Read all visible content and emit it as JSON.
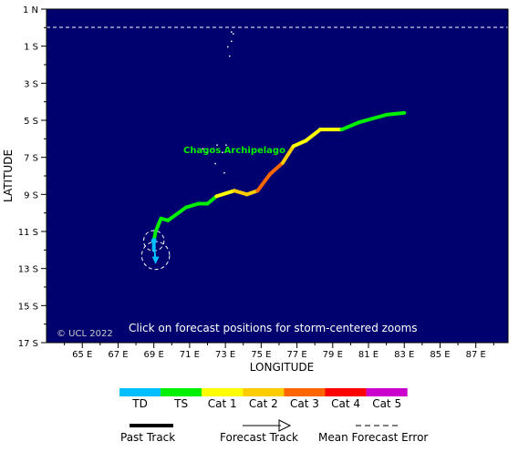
{
  "map": {
    "axes": {
      "y_title": "LATITUDE",
      "x_title": "LONGITUDE",
      "y_ticks": [
        "1 N",
        "1 S",
        "3 S",
        "5 S",
        "7 S",
        "9 S",
        "11 S",
        "13 S",
        "15 S",
        "17 S"
      ],
      "x_ticks": [
        "65 E",
        "67 E",
        "69 E",
        "71 E",
        "73 E",
        "75 E",
        "77 E",
        "79 E",
        "81 E",
        "83 E",
        "85 E",
        "87 E"
      ]
    },
    "region_label": "Chagos Archipelago",
    "copyright": "© UCL 2022",
    "instructions": "Click on forecast positions for storm-centered zooms",
    "colors": {
      "ocean": "#00006e",
      "TD": "#00bfff",
      "TS": "#00ee00",
      "Cat 1": "#ffff00",
      "Cat 2": "#ffcc00",
      "Cat 3": "#ff6600",
      "Cat 4": "#ff0000",
      "Cat 5": "#cc00cc"
    },
    "past_track": [
      {
        "lon": 69.0,
        "lat": -12.0,
        "cat": "TD"
      },
      {
        "lon": 69.0,
        "lat": -11.5,
        "cat": "TD"
      },
      {
        "lon": 69.1,
        "lat": -11.0,
        "cat": "TS"
      },
      {
        "lon": 69.4,
        "lat": -10.3,
        "cat": "TS"
      },
      {
        "lon": 69.8,
        "lat": -10.4,
        "cat": "TS"
      },
      {
        "lon": 70.8,
        "lat": -9.7,
        "cat": "TS"
      },
      {
        "lon": 71.5,
        "lat": -9.5,
        "cat": "TS"
      },
      {
        "lon": 72.0,
        "lat": -9.5,
        "cat": "TS"
      },
      {
        "lon": 72.5,
        "lat": -9.1,
        "cat": "TS"
      },
      {
        "lon": 73.5,
        "lat": -8.8,
        "cat": "Cat 1"
      },
      {
        "lon": 74.2,
        "lat": -9.0,
        "cat": "Cat 2"
      },
      {
        "lon": 74.8,
        "lat": -8.8,
        "cat": "Cat 2"
      },
      {
        "lon": 75.5,
        "lat": -7.9,
        "cat": "Cat 3"
      },
      {
        "lon": 76.2,
        "lat": -7.3,
        "cat": "Cat 3"
      },
      {
        "lon": 76.8,
        "lat": -6.4,
        "cat": "Cat 2"
      },
      {
        "lon": 77.5,
        "lat": -6.1,
        "cat": "Cat 1"
      },
      {
        "lon": 78.3,
        "lat": -5.5,
        "cat": "Cat 1"
      },
      {
        "lon": 79.5,
        "lat": -5.5,
        "cat": "Cat 1"
      },
      {
        "lon": 80.5,
        "lat": -5.1,
        "cat": "TS"
      },
      {
        "lon": 82.0,
        "lat": -4.7,
        "cat": "TS"
      },
      {
        "lon": 83.0,
        "lat": -4.6,
        "cat": "TS"
      }
    ],
    "forecast_track": [
      {
        "lon": 69.0,
        "lat": -11.5,
        "cat": "TD"
      },
      {
        "lon": 69.1,
        "lat": -12.7,
        "cat": "TD"
      }
    ],
    "error_circles": [
      {
        "lon": 69.0,
        "lat": -11.5,
        "r_deg": 0.55
      },
      {
        "lon": 69.1,
        "lat": -12.3,
        "r_deg": 0.75
      }
    ],
    "islands": [
      {
        "lon": 73.3,
        "lat": -0.7
      },
      {
        "lon": 73.4,
        "lat": -0.3
      },
      {
        "lon": 73.2,
        "lat": -1.5
      },
      {
        "lon": 73.1,
        "lat": -1.0
      },
      {
        "lon": 73.3,
        "lat": -0.2
      },
      {
        "lon": 72.5,
        "lat": -6.3
      },
      {
        "lon": 72.3,
        "lat": -6.5
      },
      {
        "lon": 73.0,
        "lat": -6.3
      },
      {
        "lon": 72.8,
        "lat": -6.7
      },
      {
        "lon": 72.4,
        "lat": -7.3
      },
      {
        "lon": 72.9,
        "lat": -7.8
      },
      {
        "lon": 71.7,
        "lat": -6.5
      },
      {
        "lon": 71.9,
        "lat": -6.7
      }
    ]
  },
  "legend": {
    "categories": [
      "TD",
      "TS",
      "Cat 1",
      "Cat 2",
      "Cat 3",
      "Cat 4",
      "Cat 5"
    ],
    "past_track_label": "Past Track",
    "forecast_track_label": "Forecast Track",
    "error_label": "Mean Forecast Error"
  }
}
